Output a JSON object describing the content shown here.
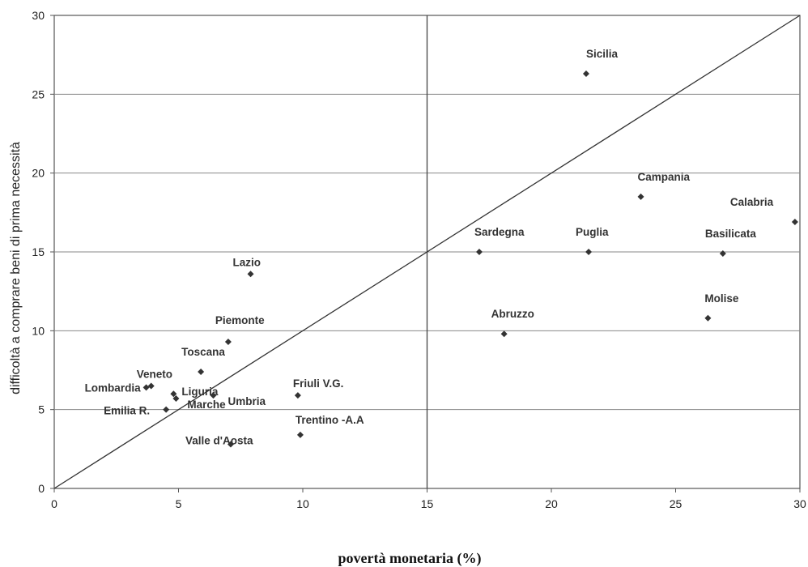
{
  "chart_data": {
    "type": "scatter",
    "title": "",
    "xlabel": "povertà monetaria (%)",
    "ylabel": "difficoltà a comprare beni di prima necessità",
    "xlim": [
      0,
      30
    ],
    "ylim": [
      0,
      30
    ],
    "x_ticks": [
      0,
      5,
      10,
      15,
      20,
      25,
      30
    ],
    "y_ticks": [
      0,
      5,
      10,
      15,
      20,
      25,
      30
    ],
    "grid": "horizontal",
    "reference_lines": {
      "vertical_x": 15,
      "diagonal": [
        [
          0,
          0
        ],
        [
          30,
          30
        ]
      ]
    },
    "marker_color": "#333333",
    "points": [
      {
        "label": "Sicilia",
        "x": 21.4,
        "y": 26.3
      },
      {
        "label": "Campania",
        "x": 23.6,
        "y": 18.5
      },
      {
        "label": "Calabria",
        "x": 29.8,
        "y": 16.9
      },
      {
        "label": "Sardegna",
        "x": 17.1,
        "y": 15.0
      },
      {
        "label": "Puglia",
        "x": 21.5,
        "y": 15.0
      },
      {
        "label": "Basilicata",
        "x": 26.9,
        "y": 14.9
      },
      {
        "label": "Molise",
        "x": 26.3,
        "y": 10.8
      },
      {
        "label": "Abruzzo",
        "x": 18.1,
        "y": 9.8
      },
      {
        "label": "Lazio",
        "x": 7.9,
        "y": 13.6
      },
      {
        "label": "Piemonte",
        "x": 7.0,
        "y": 9.3
      },
      {
        "label": "Toscana",
        "x": 5.9,
        "y": 7.4
      },
      {
        "label": "Veneto",
        "x": 3.9,
        "y": 6.5
      },
      {
        "label": "Lombardia",
        "x": 3.7,
        "y": 6.4
      },
      {
        "label": "Liguria",
        "x": 4.8,
        "y": 6.0
      },
      {
        "label": "Umbria",
        "x": 6.4,
        "y": 5.9
      },
      {
        "label": "Marche",
        "x": 4.9,
        "y": 5.7
      },
      {
        "label": "Friuli V.G.",
        "x": 9.8,
        "y": 5.9
      },
      {
        "label": "Emilia R.",
        "x": 4.5,
        "y": 5.0
      },
      {
        "label": "Trentino -A.A",
        "x": 9.9,
        "y": 3.4
      },
      {
        "label": "Valle d'Aosta",
        "x": 7.1,
        "y": 2.8
      }
    ]
  }
}
